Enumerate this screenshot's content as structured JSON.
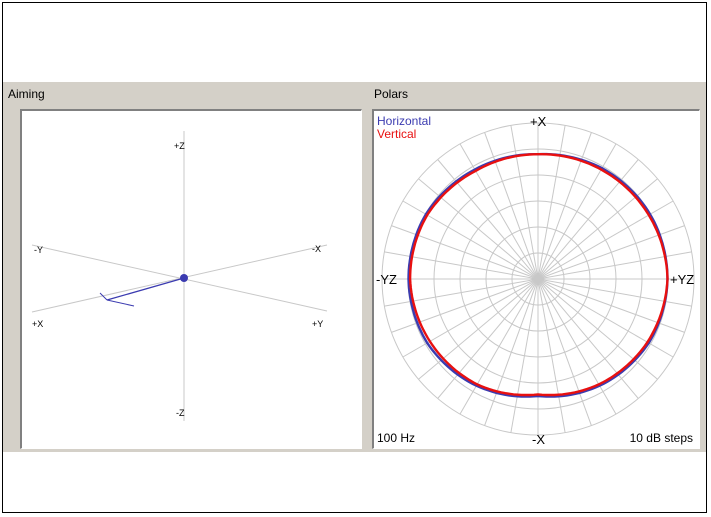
{
  "aiming": {
    "title": "Aiming",
    "axis_labels": {
      "plus_z": "+Z",
      "minus_z": "-Z",
      "minus_y": "-Y",
      "plus_y": "+Y",
      "plus_x": "+X",
      "minus_x": "-X"
    }
  },
  "polars": {
    "title": "Polars",
    "legend": [
      {
        "name": "Horizontal",
        "color": "#3b3bb0"
      },
      {
        "name": "Vertical",
        "color": "#e81010"
      }
    ],
    "axis_labels": {
      "top": "+X",
      "bottom": "-X",
      "left": "-YZ",
      "right": "+YZ"
    },
    "frequency": "100 Hz",
    "scale": "10 dB steps"
  },
  "colors": {
    "panel_bg": "#d4d0c8",
    "grid": "#c8c8c8",
    "aim_line": "#3b3bb0"
  },
  "chart_data": {
    "type": "polar",
    "title": "",
    "frequency": "100 Hz",
    "radial_step_db": 10,
    "rings": 6,
    "spokes_deg": 10,
    "series": [
      {
        "name": "Horizontal",
        "color": "#3b3bb0",
        "angles": [
          0,
          30,
          60,
          90,
          120,
          150,
          180,
          210,
          240,
          270,
          300,
          330
        ],
        "radius_fraction": [
          0.8,
          0.82,
          0.83,
          0.83,
          0.82,
          0.79,
          0.75,
          0.79,
          0.82,
          0.83,
          0.83,
          0.81
        ]
      },
      {
        "name": "Vertical",
        "color": "#e81010",
        "angles": [
          0,
          30,
          60,
          90,
          120,
          150,
          180,
          210,
          240,
          270,
          300,
          330
        ],
        "radius_fraction": [
          0.8,
          0.81,
          0.82,
          0.83,
          0.81,
          0.78,
          0.74,
          0.78,
          0.8,
          0.82,
          0.82,
          0.8
        ]
      }
    ]
  }
}
